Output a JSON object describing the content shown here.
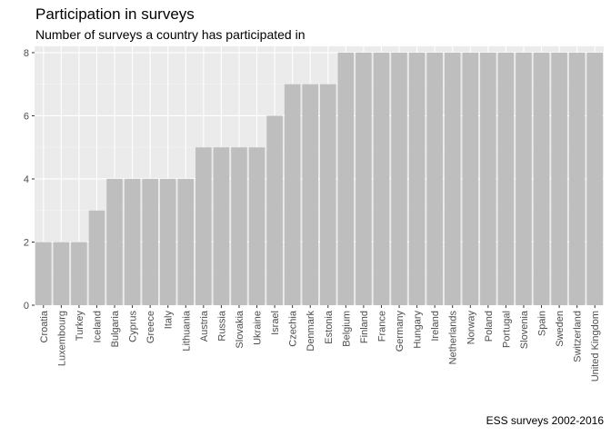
{
  "chart_data": {
    "type": "bar",
    "title": "Participation in surveys",
    "subtitle": "Number of surveys a country has participated in",
    "caption": "ESS surveys 2002-2016",
    "xlabel": "",
    "ylabel": "",
    "ylim": [
      0,
      8.2
    ],
    "yticks": [
      0,
      2,
      4,
      6,
      8
    ],
    "grid": true,
    "categories": [
      "Croatia",
      "Luxembourg",
      "Turkey",
      "Iceland",
      "Bulgaria",
      "Cyprus",
      "Greece",
      "Italy",
      "Lithuania",
      "Austria",
      "Russia",
      "Slovakia",
      "Ukraine",
      "Israel",
      "Czechia",
      "Denmark",
      "Estonia",
      "Belgium",
      "Finland",
      "France",
      "Germany",
      "Hungary",
      "Ireland",
      "Netherlands",
      "Norway",
      "Poland",
      "Portugal",
      "Slovenia",
      "Spain",
      "Sweden",
      "Switzerland",
      "United Kingdom"
    ],
    "values": [
      2,
      2,
      2,
      3,
      4,
      4,
      4,
      4,
      4,
      5,
      5,
      5,
      5,
      6,
      7,
      7,
      7,
      8,
      8,
      8,
      8,
      8,
      8,
      8,
      8,
      8,
      8,
      8,
      8,
      8,
      8,
      8
    ]
  },
  "colors": {
    "panel": "#EBEBEB",
    "grid_major": "#FFFFFF",
    "grid_minor": "#F2F2F2",
    "bar": "#BEBEBE",
    "tick_text": "#4D4D4D",
    "tick_mark": "#333333"
  }
}
